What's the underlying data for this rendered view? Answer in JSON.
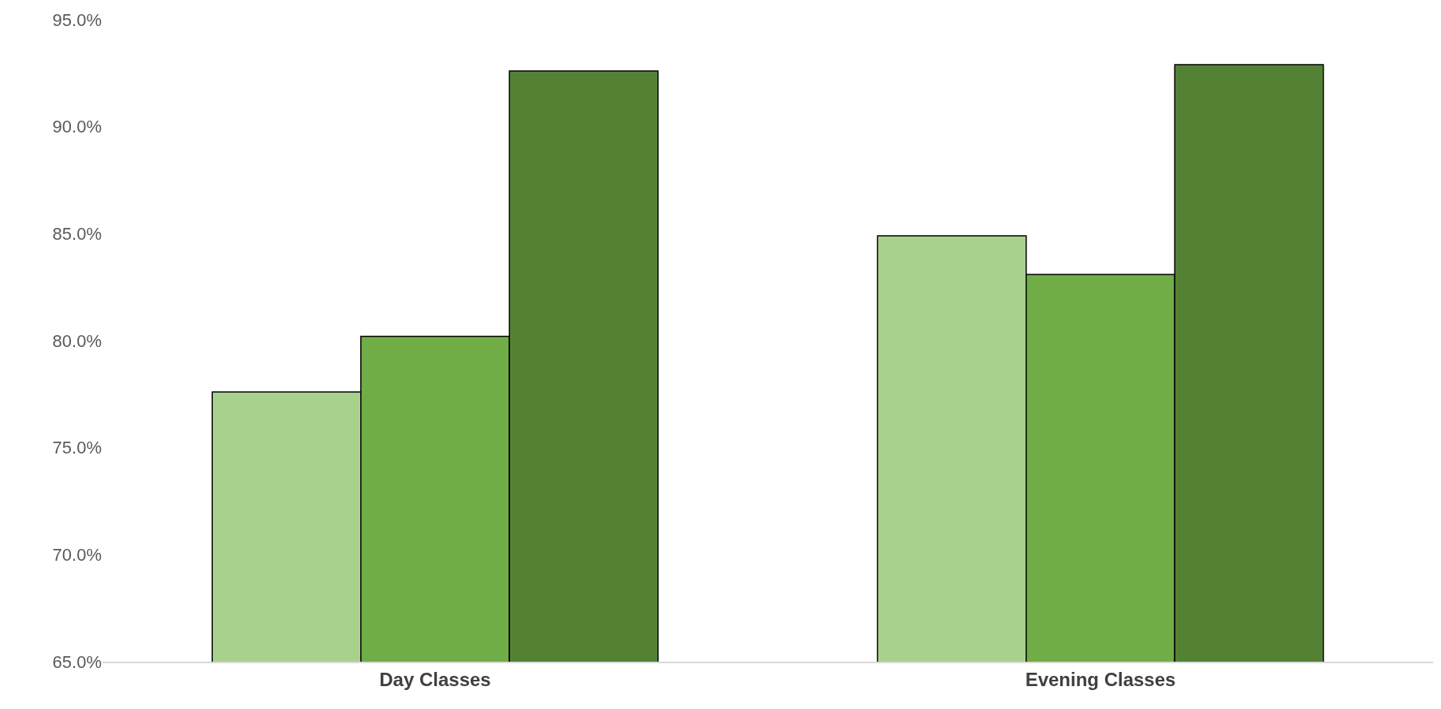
{
  "chart_data": {
    "type": "bar",
    "categories": [
      "Day Classes",
      "Evening Classes"
    ],
    "series": [
      {
        "color": "#a9d18e",
        "values": [
          77.6,
          84.9
        ]
      },
      {
        "color": "#70ad47",
        "values": [
          80.2,
          83.1
        ]
      },
      {
        "color": "#548235",
        "values": [
          92.6,
          92.9
        ]
      }
    ],
    "ylim": [
      65,
      95
    ],
    "yticks": [
      {
        "value": 65,
        "label": "65.0%"
      },
      {
        "value": 70,
        "label": "70.0%"
      },
      {
        "value": 75,
        "label": "75.0%"
      },
      {
        "value": 80,
        "label": "80.0%"
      },
      {
        "value": 85,
        "label": "85.0%"
      },
      {
        "value": 90,
        "label": "90.0%"
      },
      {
        "value": 95,
        "label": "95.0%"
      }
    ],
    "grid": false,
    "legend": false
  }
}
